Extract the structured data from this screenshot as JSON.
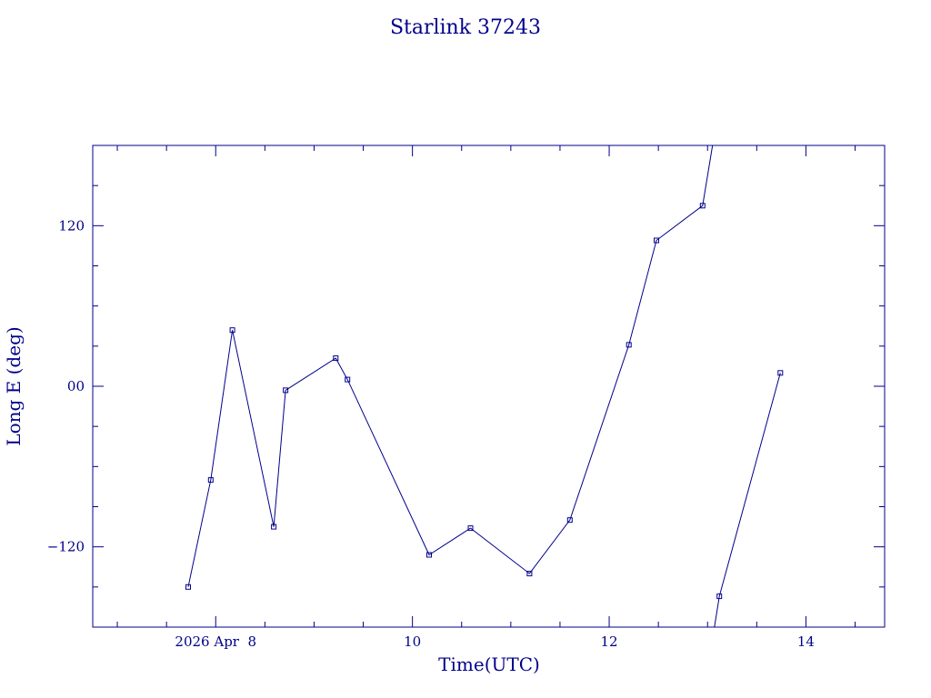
{
  "chart_data": {
    "type": "line",
    "title": "Starlink 37243",
    "xlabel": "Time(UTC)",
    "ylabel": "Long E (deg)",
    "x_unit": "hours UTC",
    "xlim": [
      6.75,
      14.8
    ],
    "ylim": [
      -180,
      180
    ],
    "grid": false,
    "x_major_ticks": [
      {
        "value": 8,
        "label": "2026 Apr  8"
      },
      {
        "value": 10,
        "label": "10"
      },
      {
        "value": 12,
        "label": "12"
      },
      {
        "value": 14,
        "label": "14"
      }
    ],
    "y_major_ticks": [
      {
        "value": 120,
        "label": "120"
      },
      {
        "value": 0,
        "label": "00"
      },
      {
        "value": -120,
        "label": "−120"
      }
    ],
    "color": "#00008b",
    "series": [
      {
        "segments": [
          [
            [
              7.72,
              -150
            ],
            [
              7.95,
              -70
            ],
            [
              8.17,
              42
            ],
            [
              8.59,
              -105
            ],
            [
              8.71,
              -3
            ],
            [
              9.22,
              21
            ],
            [
              9.34,
              5
            ],
            [
              10.17,
              -126
            ],
            [
              10.59,
              -106
            ],
            [
              11.19,
              -140
            ],
            [
              11.6,
              -100
            ],
            [
              12.2,
              31
            ],
            [
              12.48,
              109
            ],
            [
              12.95,
              135
            ],
            [
              13.05,
              180
            ]
          ],
          [
            [
              13.07,
              -180
            ],
            [
              13.12,
              -157
            ],
            [
              13.74,
              10
            ]
          ]
        ],
        "markers": [
          [
            7.72,
            -150
          ],
          [
            7.95,
            -70
          ],
          [
            8.17,
            42
          ],
          [
            8.59,
            -105
          ],
          [
            8.71,
            -3
          ],
          [
            9.22,
            21
          ],
          [
            9.34,
            5
          ],
          [
            10.17,
            -126
          ],
          [
            10.59,
            -106
          ],
          [
            11.19,
            -140
          ],
          [
            11.6,
            -100
          ],
          [
            12.2,
            31
          ],
          [
            12.48,
            109
          ],
          [
            12.95,
            135
          ],
          [
            13.12,
            -157
          ],
          [
            13.74,
            10
          ]
        ]
      }
    ]
  }
}
